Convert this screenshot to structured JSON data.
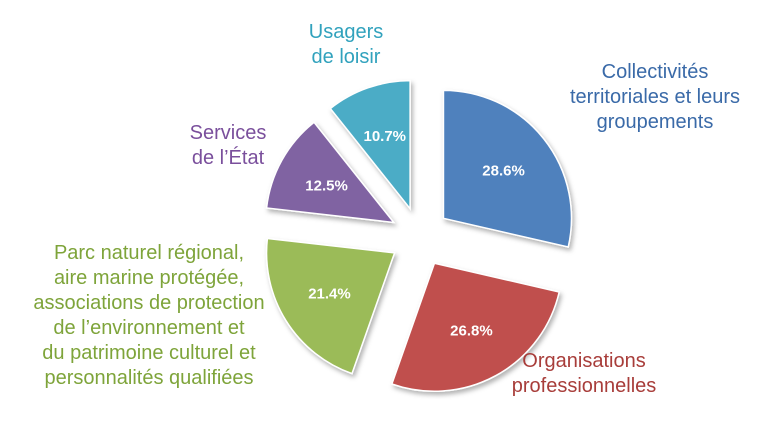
{
  "chart_data": {
    "type": "pie",
    "title": "",
    "slices": [
      {
        "label": "Collectivités territoriales et leurs groupements",
        "value": 28.6,
        "value_label": "28.6%",
        "color": "#4f81bd"
      },
      {
        "label": "Organisations professionnelles",
        "value": 26.8,
        "value_label": "26.8%",
        "color": "#c0504d"
      },
      {
        "label": "Parc naturel régional, aire marine protégée, associations de protection de l’environnement et du patrimoine culturel et personnalités qualifiées",
        "value": 21.4,
        "value_label": "21.4%",
        "color": "#9bbb59"
      },
      {
        "label": "Services de l’État",
        "value": 12.5,
        "value_label": "12.5%",
        "color": "#8064a2"
      },
      {
        "label": "Usagers de loisir",
        "value": 10.7,
        "value_label": "10.7%",
        "color": "#4bacc6"
      }
    ],
    "legend": "none",
    "exploded": true
  },
  "labels": {
    "collectivites": "Collectivités\nterritoriales et leurs\ngroupements",
    "organisations": "Organisations\nprofessionnelles",
    "parc": "Parc naturel régional,\naire marine protégée,\nassociations de protection\nde l’environnement et\ndu patrimoine culturel et\npersonnalités qualifiées",
    "services": "Services\nde l’État",
    "usagers": "Usagers\nde loisir"
  }
}
